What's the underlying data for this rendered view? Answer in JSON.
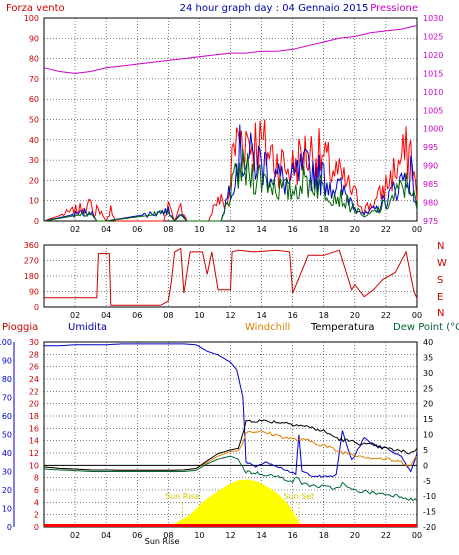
{
  "chart_data": [
    {
      "type": "line",
      "title": "24 hour graph day : 04 Gennaio 2015",
      "left_label": "Forza vento",
      "right_label": "Pressione",
      "x_ticks": [
        "02",
        "04",
        "06",
        "08",
        "10",
        "12",
        "14",
        "16",
        "18",
        "20",
        "22",
        "00"
      ],
      "y_ticks_left": [
        "0",
        "10",
        "20",
        "30",
        "40",
        "50",
        "60",
        "70",
        "80",
        "90",
        "100"
      ],
      "y_ticks_right": [
        "975",
        "980",
        "985",
        "990",
        "995",
        "1000",
        "1005",
        "1010",
        "1015",
        "1020",
        "1025",
        "1030"
      ],
      "ylim_left": [
        0,
        100
      ],
      "ylim_right": [
        975,
        1030
      ],
      "series": [
        {
          "name": "Pressione",
          "color": "#cc00cc",
          "axis": "right",
          "x": [
            0,
            1,
            2,
            3,
            4,
            5,
            6,
            7,
            8,
            9,
            10,
            11,
            12,
            13,
            14,
            15,
            16,
            17,
            18,
            19,
            20,
            21,
            22,
            23,
            24
          ],
          "y": [
            1016.5,
            1015.5,
            1015,
            1015.5,
            1016.5,
            1017,
            1017.5,
            1018,
            1018.5,
            1019,
            1019.5,
            1020,
            1020.5,
            1020.5,
            1021,
            1021,
            1021.5,
            1022.5,
            1023.5,
            1024.5,
            1025,
            1026,
            1026.5,
            1027,
            1028
          ]
        },
        {
          "name": "",
          "color": "#ff0000",
          "axis": "left",
          "style": "noisy",
          "x": [
            0,
            3.0,
            3.2,
            3.4,
            4.0,
            4.3,
            4.6,
            7.7,
            8.0,
            8.4,
            8.8,
            9.2,
            10.6,
            11.0,
            11.4,
            11.8,
            12.2,
            12.6,
            13.4,
            14.2,
            15.0,
            15.8,
            16.6,
            17.4,
            18.2,
            19.0,
            19.8,
            20.6,
            21.4,
            22.2,
            23.0,
            23.6,
            24
          ],
          "y": [
            0,
            8,
            2,
            7,
            0,
            6,
            0,
            0,
            8,
            0,
            7,
            0,
            0,
            9,
            10,
            8,
            35,
            42,
            40,
            36,
            30,
            25,
            32,
            34,
            28,
            22,
            15,
            6,
            10,
            20,
            30,
            35,
            10
          ]
        },
        {
          "name": "",
          "color": "#0000cc",
          "axis": "left",
          "style": "noisy",
          "x": [
            0,
            3.0,
            3.4,
            4.0,
            8.0,
            8.4,
            8.8,
            9.2,
            11.4,
            12.2,
            12.6,
            13.4,
            14.2,
            15.0,
            15.8,
            16.6,
            17.4,
            18.2,
            19.0,
            19.8,
            20.6,
            21.4,
            22.2,
            23.0,
            23.6,
            24
          ],
          "y": [
            0,
            5,
            0,
            0,
            5,
            0,
            4,
            0,
            0,
            24,
            33,
            30,
            28,
            22,
            18,
            25,
            25,
            20,
            16,
            10,
            3,
            6,
            12,
            20,
            24,
            6
          ]
        },
        {
          "name": "",
          "color": "#006600",
          "axis": "left",
          "style": "noisy",
          "x": [
            0,
            3.0,
            3.4,
            4.0,
            8.0,
            8.4,
            8.8,
            9.2,
            11.4,
            12.2,
            12.6,
            13.4,
            14.2,
            15.0,
            15.8,
            16.6,
            17.4,
            18.2,
            19.0,
            19.8,
            20.6,
            21.4,
            22.2,
            23.0,
            23.6,
            24
          ],
          "y": [
            0,
            4,
            0,
            0,
            4,
            0,
            3,
            0,
            0,
            18,
            25,
            23,
            21,
            17,
            14,
            19,
            19,
            15,
            12,
            7,
            2,
            5,
            9,
            16,
            19,
            5
          ]
        }
      ]
    },
    {
      "type": "line",
      "right_labels": [
        "N",
        "W",
        "S",
        "E",
        "N"
      ],
      "y_ticks_left": [
        "0",
        "90",
        "180",
        "270",
        "360"
      ],
      "ylim": [
        0,
        360
      ],
      "series": [
        {
          "name": "",
          "color": "#cc0000",
          "axis": "left",
          "x": [
            0,
            3.4,
            3.5,
            4.2,
            4.3,
            5.2,
            6.0,
            7.5,
            8.0,
            8.2,
            8.4,
            8.8,
            9.0,
            9.4,
            10.2,
            10.5,
            10.8,
            11.2,
            12.0,
            12.1,
            12.5,
            13.5,
            15.0,
            15.8,
            16.0,
            17.0,
            18.0,
            19.0,
            19.8,
            20.0,
            20.6,
            21.2,
            21.8,
            22.6,
            23.3,
            23.8,
            24
          ],
          "y": [
            54,
            54,
            310,
            310,
            10,
            10,
            10,
            10,
            35,
            150,
            320,
            340,
            80,
            320,
            320,
            190,
            320,
            100,
            100,
            320,
            330,
            320,
            330,
            320,
            80,
            300,
            300,
            330,
            100,
            130,
            60,
            100,
            160,
            200,
            320,
            90,
            50
          ]
        }
      ]
    },
    {
      "type": "line",
      "header_labels": [
        "Pioggia",
        "Umidita",
        "Windchill",
        "Temperatura",
        "Dew Point (°C"
      ],
      "y_ticks_humidity": [
        "0",
        "10",
        "20",
        "30",
        "40",
        "50",
        "60",
        "70",
        "80",
        "90",
        "100"
      ],
      "y_ticks_rain": [
        "0",
        "2",
        "4",
        "6",
        "8",
        "10",
        "12",
        "14",
        "16",
        "18",
        "20",
        "22",
        "24",
        "26",
        "28",
        "30"
      ],
      "y_ticks_temp": [
        "-20",
        "-15",
        "-10",
        "-5",
        "0",
        "5",
        "10",
        "15",
        "20",
        "25",
        "30",
        "35",
        "40"
      ],
      "sun_labels": [
        "Sun Rise",
        "Sun Set",
        "Sun Rise"
      ],
      "series": [
        {
          "name": "Umidita",
          "color": "#0000cc",
          "axis": "humidity",
          "x": [
            0,
            1,
            2,
            3,
            4,
            5,
            6,
            7,
            8,
            9,
            9.8,
            10.5,
            11.2,
            12.0,
            12.4,
            12.8,
            13.0,
            13.6,
            14.4,
            15.0,
            15.8,
            16.2,
            16.4,
            16.6,
            17.2,
            18.0,
            18.8,
            19.2,
            19.8,
            20.6,
            21.4,
            22.2,
            23.0,
            23.6,
            24
          ],
          "y": [
            98,
            98,
            98.5,
            98.5,
            98.5,
            99,
            99,
            99,
            99,
            99,
            98.5,
            95,
            93,
            89,
            85,
            70,
            35,
            33,
            35,
            33,
            30,
            28,
            50,
            30,
            28,
            27,
            28,
            52,
            36,
            48,
            44,
            42,
            38,
            30,
            40
          ]
        },
        {
          "name": "Windchill",
          "color": "#e08000",
          "axis": "temp",
          "x": [
            0,
            1,
            2,
            3,
            4,
            5,
            6,
            7,
            8,
            9,
            9.8,
            10.5,
            11.2,
            12.0,
            12.5,
            12.8,
            13.0,
            13.6,
            14.4,
            15.2,
            16.0,
            17.0,
            18.0,
            19.0,
            20.0,
            21.0,
            22.0,
            23.0,
            23.6,
            24
          ],
          "y": [
            -0.5,
            -1,
            -1.2,
            -1.5,
            -1.5,
            -1.6,
            -1.6,
            -1.6,
            -1.6,
            -1.5,
            -1,
            1,
            3,
            4.5,
            4.7,
            7,
            11,
            11,
            10.5,
            9.5,
            8.5,
            8,
            6.5,
            4.5,
            3.5,
            2.5,
            2,
            1,
            0,
            3
          ]
        },
        {
          "name": "Temperatura",
          "color": "#000000",
          "axis": "temp",
          "x": [
            0,
            1,
            2,
            3,
            4,
            5,
            6,
            7,
            8,
            9,
            9.8,
            10.5,
            11.2,
            12.0,
            12.5,
            12.8,
            13.0,
            13.6,
            14.4,
            15.2,
            16.0,
            17.0,
            18.0,
            19.0,
            20.0,
            21.0,
            22.0,
            23.0,
            23.6,
            24
          ],
          "y": [
            -0.5,
            -1,
            -1.2,
            -1.5,
            -1.5,
            -1.6,
            -1.6,
            -1.6,
            -1.6,
            -1.5,
            -1,
            1.5,
            3.8,
            5,
            5.5,
            10,
            14.5,
            14.5,
            14.3,
            14,
            13.5,
            12.5,
            11,
            8.5,
            7.5,
            6.5,
            5.5,
            4.5,
            4,
            5.5
          ]
        },
        {
          "name": "Dew Point (°C",
          "color": "#006633",
          "axis": "temp",
          "x": [
            0,
            1,
            2,
            3,
            4,
            5,
            6,
            7,
            8,
            9,
            9.8,
            10.5,
            11.2,
            12.0,
            12.5,
            12.8,
            13.0,
            13.6,
            14.4,
            15.2,
            16.0,
            16.4,
            16.6,
            17.2,
            18.0,
            18.8,
            19.2,
            19.8,
            20.6,
            21.4,
            22.2,
            23.0,
            23.6,
            24
          ],
          "y": [
            -1.2,
            -1.5,
            -1.7,
            -2,
            -2,
            -2,
            -2,
            -2,
            -2,
            -2,
            -1.6,
            0.5,
            2,
            3,
            2,
            -1,
            -2,
            -2.5,
            -3,
            -4,
            -5,
            -4,
            -6,
            -6.5,
            -7,
            -7.5,
            -6,
            -8,
            -8.5,
            -9,
            -9.5,
            -10,
            -11,
            -11.5
          ]
        },
        {
          "name": "Solar",
          "color": "#ffff00",
          "axis": "rain_fill",
          "x": [
            7.6,
            8.5,
            9.4,
            10.2,
            11.0,
            11.8,
            12.5,
            13.2,
            13.8,
            14.4,
            15.0,
            15.6,
            16.0,
            16.3,
            16.6
          ],
          "y": [
            0,
            0.7,
            2,
            4,
            5.5,
            6.8,
            7.6,
            7.7,
            7.3,
            6.5,
            5.5,
            4,
            2.7,
            1.2,
            0
          ]
        },
        {
          "name": "Pioggia",
          "color": "#ff0000",
          "axis": "rain",
          "x": [
            0,
            24
          ],
          "y": [
            0,
            0
          ]
        }
      ]
    }
  ]
}
